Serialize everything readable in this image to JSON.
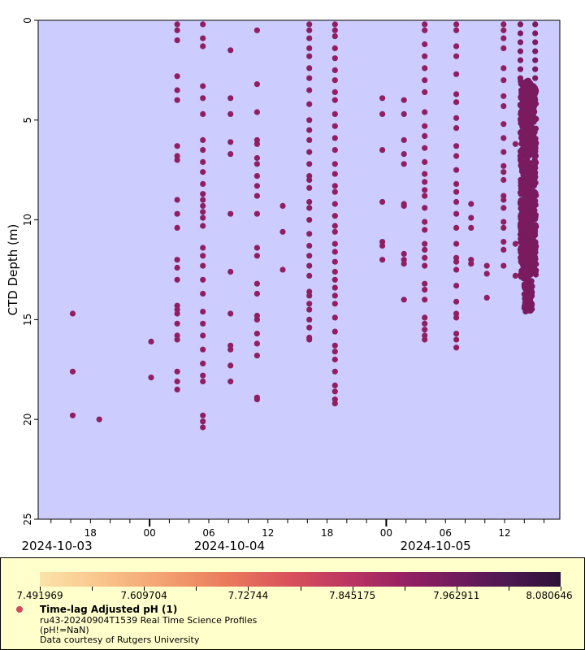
{
  "chart_data": {
    "type": "scatter",
    "title": "",
    "ylabel": "CTD Depth (m)",
    "xlabel": "",
    "ylim": [
      0,
      25
    ],
    "y_inverted": true,
    "y_ticks": [
      0,
      5,
      10,
      15,
      20,
      25
    ],
    "x_reference": "2024-10-04T00:00",
    "x_units": "hours relative to 2024-10-04 00:00",
    "xlim": [
      -11.3,
      41.6
    ],
    "x_ticks": [
      {
        "hours": -6,
        "label": "18"
      },
      {
        "hours": 0,
        "label": "00"
      },
      {
        "hours": 6,
        "label": "06"
      },
      {
        "hours": 12,
        "label": "12"
      },
      {
        "hours": 18,
        "label": "18"
      },
      {
        "hours": 24,
        "label": "00"
      },
      {
        "hours": 30,
        "label": "06"
      },
      {
        "hours": 36,
        "label": "12"
      }
    ],
    "x_date_labels": [
      {
        "hours": -9.4,
        "label": "2024-10-03"
      },
      {
        "hours": 8.1,
        "label": "2024-10-04"
      },
      {
        "hours": 29.0,
        "label": "2024-10-05"
      }
    ],
    "grid": false,
    "background": "#ccccff",
    "series": [
      {
        "name": "Time-lag Adjusted pH (1)",
        "color_typical": "#8e2062",
        "profiles": [
          {
            "hours": -7.8,
            "depths": [
              14.7,
              17.6,
              19.8
            ]
          },
          {
            "hours": -5.1,
            "depths": [
              20.0
            ]
          },
          {
            "hours": 0.15,
            "depths": [
              16.1,
              17.9
            ]
          },
          {
            "hours": 2.8,
            "depths": [
              0.2,
              0.5,
              1.0,
              2.8,
              3.5,
              4.0,
              6.3,
              6.8,
              7.0,
              9.0,
              9.7,
              10.4,
              12.0,
              12.4,
              13.0,
              14.3,
              14.5,
              14.7,
              15.2,
              15.8,
              16.0,
              17.6,
              18.1,
              18.5
            ]
          },
          {
            "hours": 5.4,
            "depths": [
              0.2,
              0.9,
              1.3,
              3.3,
              3.9,
              4.7,
              6.0,
              6.5,
              7.1,
              7.6,
              8.2,
              8.7,
              9.0,
              9.3,
              9.6,
              9.9,
              10.3,
              11.4,
              11.8,
              12.3,
              13.0,
              13.7,
              14.6,
              15.2,
              15.8,
              16.5,
              17.2,
              17.8,
              18.1,
              19.8,
              20.1,
              20.4
            ]
          },
          {
            "hours": 8.2,
            "depths": [
              1.5,
              3.9,
              4.7,
              6.1,
              6.7,
              9.7,
              12.6,
              14.7,
              16.3,
              16.5,
              17.3,
              18.1
            ]
          },
          {
            "hours": 10.9,
            "depths": [
              0.5,
              3.2,
              4.6,
              6.0,
              6.2,
              6.9,
              7.2,
              7.8,
              8.3,
              8.8,
              9.7,
              11.4,
              11.8,
              13.2,
              13.7,
              14.8,
              15.0,
              15.7,
              16.2,
              16.8,
              18.9,
              19.0
            ]
          },
          {
            "hours": 13.5,
            "depths": [
              9.3,
              10.6,
              12.5
            ]
          },
          {
            "hours": 16.2,
            "depths": [
              0.2,
              0.5,
              0.9,
              1.4,
              1.8,
              2.4,
              2.9,
              3.5,
              4.2,
              5.0,
              5.5,
              6.0,
              6.6,
              7.2,
              7.8,
              8.0,
              8.4,
              9.1,
              9.4,
              10.0,
              10.7,
              11.3,
              11.8,
              12.3,
              12.8,
              13.6,
              13.8,
              14.2,
              14.5,
              15.0,
              15.4,
              15.9,
              16.0
            ]
          },
          {
            "hours": 18.8,
            "depths": [
              0.2,
              0.5,
              0.8,
              1.4,
              1.9,
              2.5,
              3.0,
              3.6,
              4.0,
              4.7,
              5.3,
              5.9,
              6.5,
              7.2,
              7.7,
              8.3,
              8.6,
              9.2,
              9.8,
              10.3,
              10.6,
              11.2,
              11.6,
              12.1,
              12.6,
              13.0,
              13.4,
              13.8,
              14.2,
              14.9,
              15.6,
              16.3,
              16.6,
              17.0,
              17.6,
              18.3,
              18.6,
              19.0,
              19.2
            ]
          },
          {
            "hours": 23.6,
            "depths": [
              3.9,
              4.7,
              6.5,
              9.1,
              11.1,
              11.3,
              12.0
            ]
          },
          {
            "hours": 25.8,
            "depths": [
              4.0,
              4.7,
              6.0,
              6.7,
              7.2,
              9.2,
              9.3,
              11.7,
              12.0,
              12.2,
              14.0
            ]
          },
          {
            "hours": 27.9,
            "depths": [
              0.2,
              0.5,
              1.2,
              1.8,
              2.4,
              3.0,
              3.6,
              4.6,
              5.3,
              5.8,
              6.4,
              7.1,
              7.7,
              8.1,
              8.5,
              8.8,
              9.4,
              10.1,
              10.5,
              11.2,
              11.5,
              11.9,
              12.3,
              13.2,
              13.5,
              14.0,
              14.9,
              15.2,
              15.5,
              15.8,
              16.0
            ]
          },
          {
            "hours": 31.1,
            "depths": [
              0.2,
              0.5,
              1.3,
              1.8,
              2.7,
              3.7,
              4.1,
              4.9,
              5.4,
              6.3,
              6.8,
              7.5,
              8.2,
              8.6,
              9.1,
              9.7,
              10.4,
              11.2,
              11.9,
              12.1,
              12.5,
              13.3,
              14.1,
              14.7,
              14.9,
              15.7,
              16.0,
              16.4
            ]
          },
          {
            "hours": 32.6,
            "depths": [
              9.2,
              9.9,
              10.4,
              12.0,
              12.2
            ]
          },
          {
            "hours": 34.2,
            "depths": [
              12.3,
              12.7,
              13.9
            ]
          },
          {
            "hours": 35.9,
            "depths": [
              0.2,
              0.5,
              0.9,
              1.4,
              2.4,
              3.0,
              3.8,
              4.3,
              5.2,
              5.9,
              6.6,
              7.3,
              7.6,
              8.0,
              8.8,
              9.0,
              9.4,
              10.1,
              10.4,
              11.1,
              11.5,
              12.3
            ]
          },
          {
            "hours": 37.1,
            "depths": [
              6.2,
              11.2,
              12.8
            ]
          }
        ],
        "dense_cluster": {
          "hours_range": [
            37.6,
            39.2
          ],
          "depth_range": [
            0.2,
            14.6
          ],
          "dense_from_depth": 3.0
        }
      }
    ],
    "colorbar": {
      "variable": "Time-lag Adjusted pH (1)",
      "min": 7.491969,
      "max": 8.080646,
      "tick_labels": [
        "7.491969",
        "7.609704",
        "7.72744",
        "7.845175",
        "7.962911",
        "8.080646"
      ],
      "colormap": "magma-like (light yellow to dark purple)"
    },
    "legend": {
      "title": "Time-lag Adjusted pH (1)",
      "lines": [
        "ru43-20240904T1539 Real Time Science Profiles",
        "(pH!=NaN)",
        "Data courtesy of Rutgers University"
      ],
      "placement": "bottom"
    }
  }
}
